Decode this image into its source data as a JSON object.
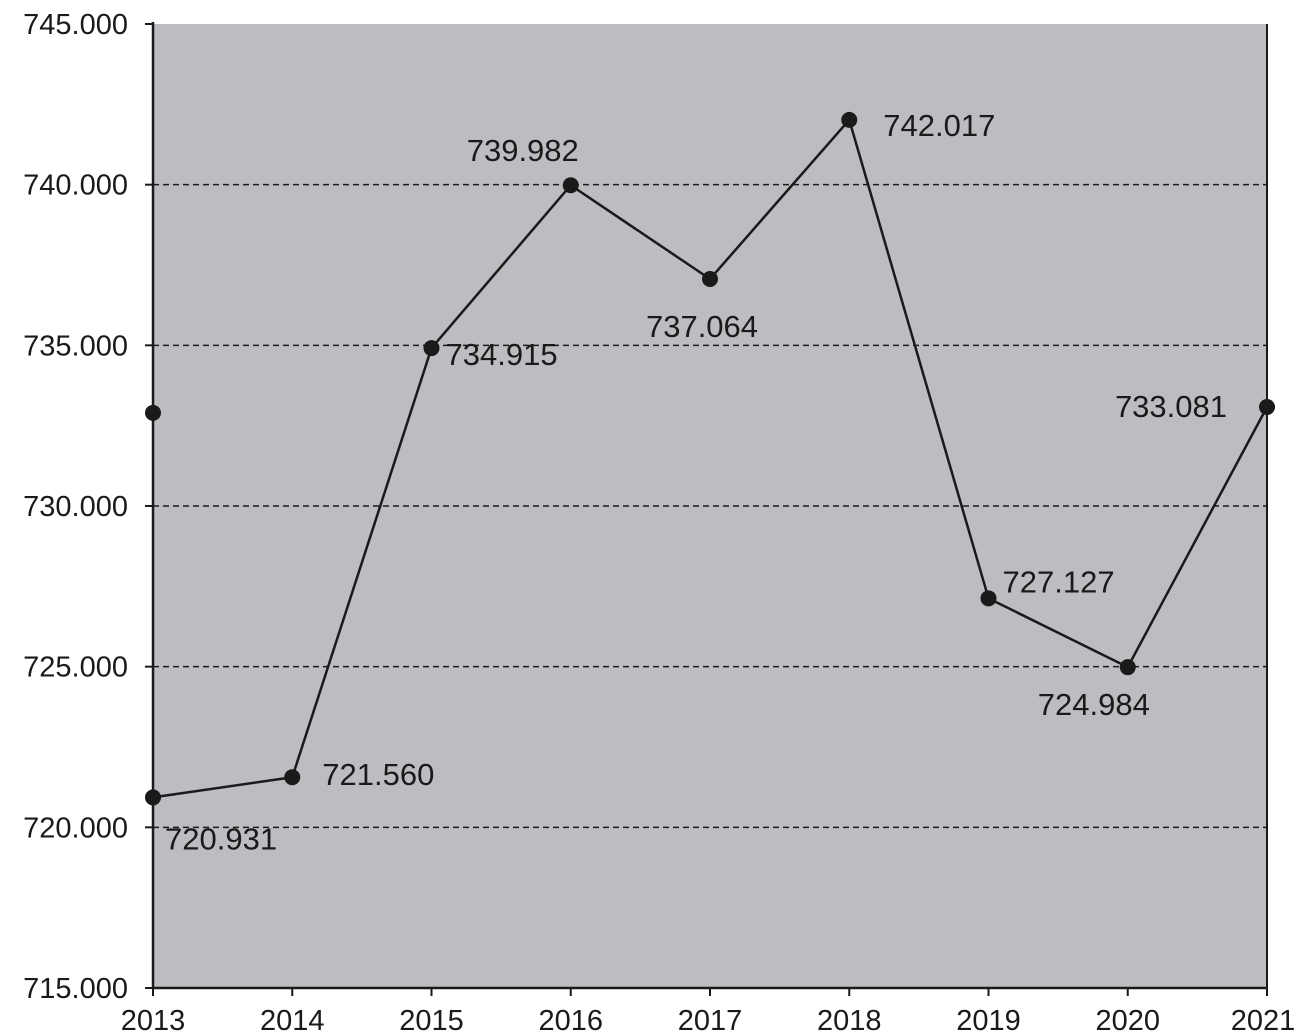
{
  "chart_data": {
    "type": "line",
    "x": [
      "2013",
      "2014",
      "2015",
      "2016",
      "2017",
      "2018",
      "2019",
      "2020",
      "2021"
    ],
    "series": [
      {
        "values": [
          720.931,
          721.56,
          734.915,
          739.982,
          737.064,
          742.017,
          727.127,
          724.984,
          733.081
        ],
        "labels": [
          "720.931",
          "721.560",
          "734.915",
          "739.982",
          "737.064",
          "742.017",
          "727.127",
          "724.984",
          "733.081"
        ]
      }
    ],
    "extra_marker": {
      "x": "2013",
      "y": 732.9
    },
    "ylim": [
      715,
      745
    ],
    "yticks": [
      715,
      720,
      725,
      730,
      735,
      740,
      745
    ],
    "ytick_labels": [
      "715.000",
      "720.000",
      "725.000",
      "730.000",
      "735.000",
      "740.000",
      "745.000"
    ],
    "grid": "horizontal dashed",
    "colors": {
      "plot_bg": "#bdbdc1",
      "line": "#1a1a1a",
      "grid": "#1a1a1a",
      "text": "#1a1a1a"
    }
  }
}
